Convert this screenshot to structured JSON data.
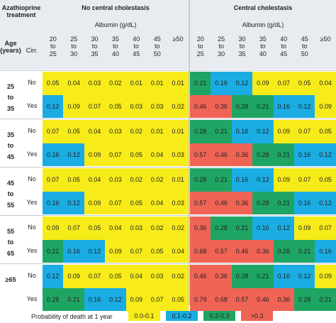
{
  "header": {
    "treatment_label": "Azathioprine treatment",
    "group_left": "No central cholestasis",
    "group_right": "Central cholestasis",
    "albumin_label": "Albumin (g/dL)",
    "age_label": "Age (years)",
    "cirr_label": "Cirr.",
    "albumin_bins": [
      "20 to 25",
      "25 to 30",
      "30 to 35",
      "35 to 40",
      "40 to 45",
      "45 to 50",
      "≥50"
    ]
  },
  "age_groups": [
    {
      "label": "25 to 35"
    },
    {
      "label": "35 to 45"
    },
    {
      "label": "45 to 55"
    },
    {
      "label": "55 to 65"
    },
    {
      "label": "≥65"
    }
  ],
  "cirr_levels": [
    "No",
    "Yes"
  ],
  "rows": [
    {
      "left": [
        "0.05",
        "0.04",
        "0.03",
        "0.02",
        "0.01",
        "0.01",
        "0.01"
      ],
      "right": [
        "0.21",
        "0.16",
        "0.12",
        "0.09",
        "0.07",
        "0.05",
        "0.04"
      ]
    },
    {
      "left": [
        "0.12",
        "0.09",
        "0.07",
        "0.05",
        "0.03",
        "0.03",
        "0.02"
      ],
      "right": [
        "0.46",
        "0.36",
        "0.28",
        "0.21",
        "0.16",
        "0.12",
        "0.09"
      ]
    },
    {
      "left": [
        "0.07",
        "0.05",
        "0.04",
        "0.03",
        "0.02",
        "0.01",
        "0.01"
      ],
      "right": [
        "0.28",
        "0.21",
        "0.16",
        "0.12",
        "0.09",
        "0.07",
        "0.05"
      ]
    },
    {
      "left": [
        "0.16",
        "0.12",
        "0.09",
        "0.07",
        "0.05",
        "0.04",
        "0.03"
      ],
      "right": [
        "0.57",
        "0.46",
        "0.36",
        "0.28",
        "0.21",
        "0.16",
        "0.12"
      ]
    },
    {
      "left": [
        "0.07",
        "0.05",
        "0.04",
        "0.03",
        "0.02",
        "0.02",
        "0.01"
      ],
      "right": [
        "0.28",
        "0.21",
        "0.16",
        "0.12",
        "0.09",
        "0.07",
        "0.05"
      ]
    },
    {
      "left": [
        "0.16",
        "0.12",
        "0.09",
        "0.07",
        "0.05",
        "0.04",
        "0.03"
      ],
      "right": [
        "0.57",
        "0.46",
        "0.36",
        "0.28",
        "0.21",
        "0.16",
        "0.12"
      ]
    },
    {
      "left": [
        "0.09",
        "0.07",
        "0.05",
        "0.04",
        "0.03",
        "0.02",
        "0.02"
      ],
      "right": [
        "0.36",
        "0.28",
        "0.21",
        "0.16",
        "0.12",
        "0.09",
        "0.07"
      ]
    },
    {
      "left": [
        "0.21",
        "0.16",
        "0.12",
        "0.09",
        "0.07",
        "0.05",
        "0.04"
      ],
      "right": [
        "0.68",
        "0.57",
        "0.46",
        "0.36",
        "0.28",
        "0.21",
        "0.16"
      ]
    },
    {
      "left": [
        "0.12",
        "0.09",
        "0.07",
        "0.05",
        "0.04",
        "0.03",
        "0.02"
      ],
      "right": [
        "0.46",
        "0.36",
        "0.28",
        "0.21",
        "0.16",
        "0.12",
        "0.09"
      ]
    },
    {
      "left": [
        "0.28",
        "0.21",
        "0.16",
        "0.12",
        "0.09",
        "0.07",
        "0.05"
      ],
      "right": [
        "0.79",
        "0.68",
        "0.57",
        "0.46",
        "0.36",
        "0.28",
        "0.21"
      ]
    }
  ],
  "legend": {
    "title": "Probability of death at 1 year",
    "items": [
      {
        "label": "0.0-0.1",
        "color": "#f7ec19"
      },
      {
        "label": "0.1-0.2",
        "color": "#1aace3"
      },
      {
        "label": "0.2-0.3",
        "color": "#1ea564"
      },
      {
        "label": ">0.3",
        "color": "#ef6455"
      }
    ]
  },
  "colors": {
    "low": "#f7ec19",
    "mid": "#1aace3",
    "high": "#1ea564",
    "very_high": "#ef6455",
    "header_bg": "#e8ebf0"
  }
}
